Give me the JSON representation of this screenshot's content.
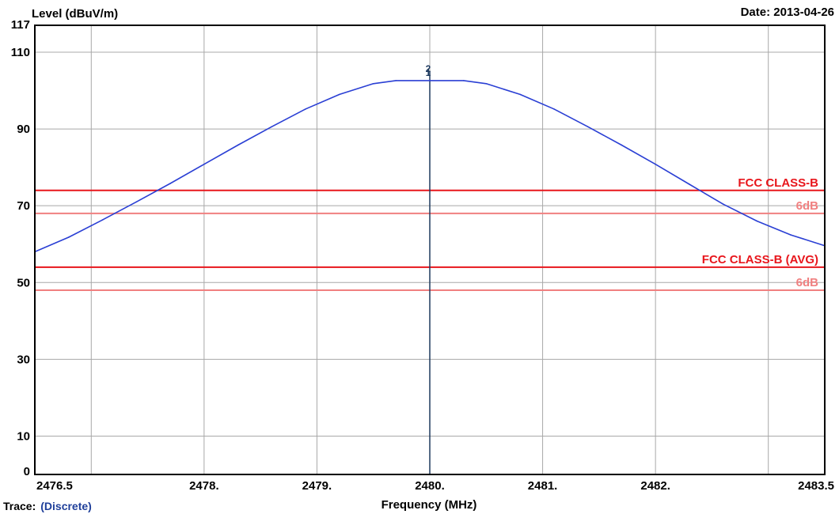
{
  "chart_data": {
    "type": "line",
    "ylabel": "Level (dBuV/m)",
    "xlabel": "Frequency (MHz)",
    "date": "Date: 2013-04-26",
    "xlim": [
      2476.5,
      2483.5
    ],
    "ylim": [
      0,
      117
    ],
    "x_ticks": [
      {
        "value": 2476.5,
        "label": "2476.5"
      },
      {
        "value": 2478,
        "label": "2478."
      },
      {
        "value": 2479,
        "label": "2479."
      },
      {
        "value": 2480,
        "label": "2480."
      },
      {
        "value": 2481,
        "label": "2481."
      },
      {
        "value": 2482,
        "label": "2482."
      },
      {
        "value": 2483.5,
        "label": "2483.5"
      }
    ],
    "x_grid": [
      2477,
      2478,
      2479,
      2480,
      2481,
      2482,
      2483
    ],
    "y_ticks": [
      {
        "value": 0,
        "label": "0"
      },
      {
        "value": 10,
        "label": "10"
      },
      {
        "value": 30,
        "label": "30"
      },
      {
        "value": 50,
        "label": "50"
      },
      {
        "value": 70,
        "label": "70"
      },
      {
        "value": 90,
        "label": "90"
      },
      {
        "value": 110,
        "label": "110"
      },
      {
        "value": 117,
        "label": "117"
      }
    ],
    "y_grid": [
      10,
      30,
      50,
      70,
      90,
      110
    ],
    "grid": true,
    "series": [
      {
        "color": "#2a3fd4",
        "x": [
          2476.5,
          2476.8,
          2477.1,
          2477.4,
          2477.7,
          2478.0,
          2478.3,
          2478.6,
          2478.9,
          2479.2,
          2479.5,
          2479.7,
          2480.0,
          2480.3,
          2480.5,
          2480.8,
          2481.1,
          2481.4,
          2481.7,
          2482.0,
          2482.3,
          2482.6,
          2482.9,
          2483.2,
          2483.5
        ],
        "y": [
          58.0,
          61.8,
          66.3,
          71.0,
          75.8,
          80.8,
          85.8,
          90.6,
          95.2,
          99.0,
          101.8,
          102.6,
          102.6,
          102.6,
          101.8,
          99.0,
          95.2,
          90.6,
          85.8,
          80.8,
          75.6,
          70.4,
          66.0,
          62.4,
          59.6
        ]
      }
    ],
    "limit_lines": [
      {
        "name": "FCC CLASS-B",
        "value": 74,
        "color": "#e8161c"
      },
      {
        "name": "6dB",
        "value": 68,
        "color": "#f08080"
      },
      {
        "name": "FCC CLASS-B (AVG)",
        "value": 54,
        "color": "#e8161c"
      },
      {
        "name": "6dB",
        "value": 48,
        "color": "#f08080"
      }
    ],
    "markers": [
      {
        "x": 2480.0,
        "labels": [
          "2",
          "1"
        ],
        "color": "#1e3a5f"
      }
    ],
    "trace_label": "Trace:",
    "trace_mode": "(Discrete)"
  }
}
